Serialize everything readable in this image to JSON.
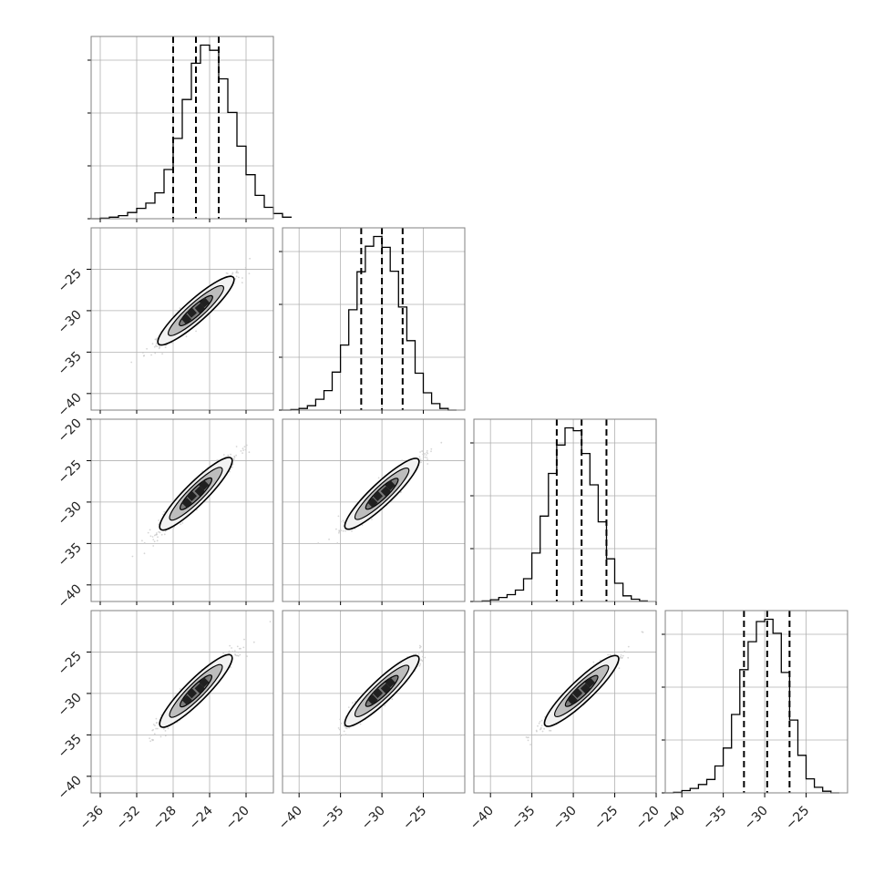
{
  "chart_data": {
    "type": "corner",
    "grid": true,
    "dimensions": [
      {
        "index": 0,
        "range": [
          -37,
          -17
        ],
        "ticks": [
          -36,
          -32,
          -28,
          -24,
          -20
        ],
        "tick_labels": [
          "−36",
          "−32",
          "−28",
          "−24",
          "−20"
        ],
        "quantiles": [
          -28.0,
          -25.5,
          -23.0
        ]
      },
      {
        "index": 1,
        "range": [
          -42,
          -20
        ],
        "ticks": [
          -40,
          -35,
          -30,
          -25
        ],
        "tick_labels": [
          "−40",
          "−35",
          "−30",
          "−25"
        ],
        "quantiles": [
          -32.5,
          -30.0,
          -27.5
        ]
      },
      {
        "index": 2,
        "range": [
          -42,
          -20
        ],
        "ticks": [
          -40,
          -35,
          -30,
          -25,
          -20
        ],
        "tick_labels": [
          "−40",
          "−35",
          "−30",
          "−25",
          "−20"
        ],
        "quantiles": [
          -32.0,
          -29.0,
          -26.0
        ]
      },
      {
        "index": 3,
        "range": [
          -42,
          -20
        ],
        "ticks": [
          -40,
          -35,
          -30,
          -25
        ],
        "tick_labels": [
          "−40",
          "−35",
          "−30",
          "−25"
        ],
        "quantiles": [
          -32.5,
          -29.7,
          -27.0
        ]
      }
    ],
    "y_axis_ticks": [
      {
        "row": 1,
        "ticks": [
          -40,
          -35,
          -30,
          -25
        ],
        "tick_labels": [
          "−40",
          "−35",
          "−30",
          "−25"
        ]
      },
      {
        "row": 2,
        "ticks": [
          -40,
          -35,
          -30,
          -25,
          -20
        ],
        "tick_labels": [
          "−40",
          "−35",
          "−30",
          "−25",
          "−20"
        ]
      },
      {
        "row": 3,
        "ticks": [
          -40,
          -35,
          -30,
          -25
        ],
        "tick_labels": [
          "−40",
          "−35",
          "−30",
          "−25"
        ]
      }
    ],
    "histograms": [
      {
        "dimension": 0,
        "bin_width": 1.0,
        "bin_edges_start": -37,
        "counts": [
          0,
          1,
          3,
          6,
          12,
          20,
          30,
          50,
          95,
          155,
          230,
          300,
          335,
          325,
          270,
          205,
          140,
          85,
          45,
          22,
          10,
          3
        ]
      },
      {
        "dimension": 1,
        "bin_width": 1.0,
        "bin_edges_start": -42,
        "counts": [
          0,
          1,
          3,
          8,
          20,
          36,
          70,
          120,
          185,
          255,
          302,
          320,
          300,
          256,
          190,
          128,
          68,
          32,
          12,
          3,
          0
        ]
      },
      {
        "dimension": 2,
        "bin_width": 1.0,
        "bin_edges_start": -42,
        "counts": [
          0,
          1,
          3,
          7,
          12,
          20,
          40,
          85,
          150,
          225,
          275,
          305,
          300,
          260,
          205,
          140,
          75,
          32,
          10,
          4,
          1
        ]
      },
      {
        "dimension": 3,
        "bin_width": 1.0,
        "bin_edges_start": -42,
        "counts": [
          0,
          1,
          4,
          8,
          15,
          24,
          48,
          80,
          140,
          220,
          270,
          306,
          310,
          285,
          215,
          130,
          67,
          25,
          10,
          3,
          0
        ]
      }
    ],
    "pairs": [
      {
        "x": 0,
        "y": 1,
        "center": [
          -25.5,
          -30.0
        ],
        "slope": 0.98,
        "scatter_color": "#c8c8c8"
      },
      {
        "x": 0,
        "y": 2,
        "center": [
          -25.5,
          -29.0
        ],
        "slope": 1.1,
        "scatter_color": "#c8c8c8"
      },
      {
        "x": 1,
        "y": 2,
        "center": [
          -30.0,
          -29.0
        ],
        "slope": 0.95,
        "scatter_color": "#c8c8c8"
      },
      {
        "x": 0,
        "y": 3,
        "center": [
          -25.5,
          -29.7
        ],
        "slope": 1.1,
        "scatter_color": "#c8c8c8"
      },
      {
        "x": 1,
        "y": 3,
        "center": [
          -30.0,
          -29.7
        ],
        "slope": 0.95,
        "scatter_color": "#c8c8c8"
      },
      {
        "x": 2,
        "y": 3,
        "center": [
          -29.0,
          -29.7
        ],
        "slope": 0.95,
        "scatter_color": "#c8c8c8"
      }
    ],
    "colors": {
      "line": "#000000",
      "grid": "#b0b0b0",
      "frame": "#808080",
      "scatter": "#c8c8c8",
      "contour_fill_levels": [
        "#f2f2f2",
        "#bdbdbd",
        "#7a7a7a",
        "#202020"
      ]
    }
  }
}
